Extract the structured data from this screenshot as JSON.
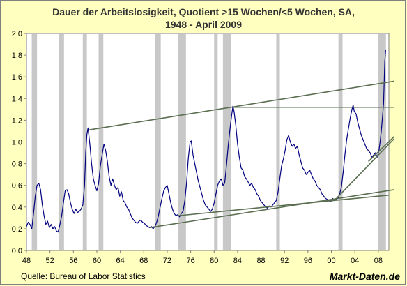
{
  "chart_data": {
    "type": "line",
    "title_line1": "Dauer der Arbeitslosigkeit, Quotient >15 Wochen/<5 Wochen, SA,",
    "title_line2": "1948 - April 2009",
    "source": "Quelle: Bureau of Labor Statistics",
    "watermark": "Markt-Daten.de",
    "xlim": [
      1948,
      2009.8
    ],
    "ylim": [
      0,
      2
    ],
    "x_ticks": [
      "48",
      "52",
      "56",
      "60",
      "64",
      "68",
      "72",
      "76",
      "80",
      "84",
      "88",
      "92",
      "96",
      "00",
      "04",
      "08"
    ],
    "x_tick_values": [
      1948,
      1952,
      1956,
      1960,
      1964,
      1968,
      1972,
      1976,
      1980,
      1984,
      1988,
      1992,
      1996,
      2000,
      2004,
      2008
    ],
    "y_ticks": [
      "0,0",
      "0,2",
      "0,4",
      "0,6",
      "0,8",
      "1,0",
      "1,2",
      "1,4",
      "1,6",
      "1,8",
      "2,0"
    ],
    "y_tick_values": [
      0,
      0.2,
      0.4,
      0.6,
      0.8,
      1.0,
      1.2,
      1.4,
      1.6,
      1.8,
      2.0
    ],
    "grid": false,
    "colors": {
      "series": "#000080",
      "recession": "#c8c8c8",
      "trendline": "#5a6e50",
      "plot_bg": "#ffffff",
      "page_bg": "#ffffc0"
    },
    "recessions": [
      [
        1948.9,
        1949.8
      ],
      [
        1953.5,
        1954.4
      ],
      [
        1957.6,
        1958.3
      ],
      [
        1960.3,
        1961.1
      ],
      [
        1969.9,
        1970.9
      ],
      [
        1973.9,
        1975.2
      ],
      [
        1980.0,
        1980.6
      ],
      [
        1981.5,
        1982.9
      ],
      [
        1990.6,
        1991.2
      ],
      [
        2001.2,
        2001.9
      ],
      [
        2007.9,
        2009.3
      ]
    ],
    "series": [
      {
        "values": [
          [
            1948.0,
            0.22
          ],
          [
            1948.3,
            0.26
          ],
          [
            1948.6,
            0.24
          ],
          [
            1948.9,
            0.2
          ],
          [
            1949.2,
            0.34
          ],
          [
            1949.5,
            0.5
          ],
          [
            1949.8,
            0.6
          ],
          [
            1950.1,
            0.62
          ],
          [
            1950.4,
            0.56
          ],
          [
            1950.7,
            0.42
          ],
          [
            1951.0,
            0.32
          ],
          [
            1951.3,
            0.24
          ],
          [
            1951.6,
            0.27
          ],
          [
            1951.9,
            0.21
          ],
          [
            1952.2,
            0.24
          ],
          [
            1952.5,
            0.2
          ],
          [
            1952.8,
            0.22
          ],
          [
            1953.1,
            0.18
          ],
          [
            1953.4,
            0.17
          ],
          [
            1953.7,
            0.24
          ],
          [
            1954.0,
            0.32
          ],
          [
            1954.3,
            0.44
          ],
          [
            1954.6,
            0.55
          ],
          [
            1954.9,
            0.56
          ],
          [
            1955.2,
            0.52
          ],
          [
            1955.5,
            0.44
          ],
          [
            1955.8,
            0.38
          ],
          [
            1956.1,
            0.34
          ],
          [
            1956.4,
            0.38
          ],
          [
            1956.7,
            0.35
          ],
          [
            1957.0,
            0.36
          ],
          [
            1957.3,
            0.38
          ],
          [
            1957.6,
            0.42
          ],
          [
            1957.9,
            0.6
          ],
          [
            1958.1,
            0.9
          ],
          [
            1958.3,
            1.07
          ],
          [
            1958.5,
            1.13
          ],
          [
            1958.8,
            0.98
          ],
          [
            1959.1,
            0.8
          ],
          [
            1959.4,
            0.66
          ],
          [
            1959.7,
            0.6
          ],
          [
            1960.0,
            0.55
          ],
          [
            1960.3,
            0.62
          ],
          [
            1960.6,
            0.78
          ],
          [
            1960.9,
            0.88
          ],
          [
            1961.2,
            0.98
          ],
          [
            1961.5,
            0.92
          ],
          [
            1961.8,
            0.82
          ],
          [
            1962.1,
            0.68
          ],
          [
            1962.4,
            0.6
          ],
          [
            1962.7,
            0.66
          ],
          [
            1963.0,
            0.6
          ],
          [
            1963.3,
            0.56
          ],
          [
            1963.6,
            0.58
          ],
          [
            1963.9,
            0.5
          ],
          [
            1964.2,
            0.54
          ],
          [
            1964.5,
            0.46
          ],
          [
            1964.8,
            0.44
          ],
          [
            1965.1,
            0.4
          ],
          [
            1965.4,
            0.38
          ],
          [
            1965.7,
            0.34
          ],
          [
            1966.0,
            0.3
          ],
          [
            1966.3,
            0.28
          ],
          [
            1966.6,
            0.26
          ],
          [
            1966.9,
            0.25
          ],
          [
            1967.2,
            0.27
          ],
          [
            1967.5,
            0.28
          ],
          [
            1967.8,
            0.26
          ],
          [
            1968.1,
            0.25
          ],
          [
            1968.4,
            0.23
          ],
          [
            1968.7,
            0.22
          ],
          [
            1969.0,
            0.21
          ],
          [
            1969.3,
            0.22
          ],
          [
            1969.6,
            0.2
          ],
          [
            1969.9,
            0.22
          ],
          [
            1970.2,
            0.26
          ],
          [
            1970.5,
            0.32
          ],
          [
            1970.8,
            0.4
          ],
          [
            1971.1,
            0.48
          ],
          [
            1971.4,
            0.55
          ],
          [
            1971.7,
            0.58
          ],
          [
            1972.0,
            0.6
          ],
          [
            1972.3,
            0.52
          ],
          [
            1972.6,
            0.44
          ],
          [
            1972.9,
            0.38
          ],
          [
            1973.2,
            0.34
          ],
          [
            1973.5,
            0.32
          ],
          [
            1973.8,
            0.33
          ],
          [
            1974.1,
            0.31
          ],
          [
            1974.4,
            0.34
          ],
          [
            1974.7,
            0.36
          ],
          [
            1975.0,
            0.46
          ],
          [
            1975.3,
            0.62
          ],
          [
            1975.6,
            0.85
          ],
          [
            1975.9,
            1.0
          ],
          [
            1976.1,
            1.01
          ],
          [
            1976.4,
            0.88
          ],
          [
            1976.7,
            0.8
          ],
          [
            1977.0,
            0.72
          ],
          [
            1977.3,
            0.64
          ],
          [
            1977.6,
            0.58
          ],
          [
            1977.9,
            0.52
          ],
          [
            1978.2,
            0.46
          ],
          [
            1978.5,
            0.42
          ],
          [
            1978.8,
            0.4
          ],
          [
            1979.1,
            0.38
          ],
          [
            1979.4,
            0.36
          ],
          [
            1979.7,
            0.38
          ],
          [
            1980.0,
            0.44
          ],
          [
            1980.3,
            0.52
          ],
          [
            1980.6,
            0.6
          ],
          [
            1980.9,
            0.64
          ],
          [
            1981.2,
            0.66
          ],
          [
            1981.5,
            0.6
          ],
          [
            1981.8,
            0.62
          ],
          [
            1982.1,
            0.78
          ],
          [
            1982.4,
            0.96
          ],
          [
            1982.7,
            1.12
          ],
          [
            1983.0,
            1.25
          ],
          [
            1983.2,
            1.33
          ],
          [
            1983.4,
            1.28
          ],
          [
            1983.7,
            1.15
          ],
          [
            1984.0,
            0.98
          ],
          [
            1984.3,
            0.86
          ],
          [
            1984.6,
            0.76
          ],
          [
            1984.9,
            0.74
          ],
          [
            1985.2,
            0.68
          ],
          [
            1985.5,
            0.66
          ],
          [
            1985.8,
            0.63
          ],
          [
            1986.1,
            0.6
          ],
          [
            1986.4,
            0.62
          ],
          [
            1986.7,
            0.58
          ],
          [
            1987.0,
            0.56
          ],
          [
            1987.3,
            0.52
          ],
          [
            1987.6,
            0.5
          ],
          [
            1987.9,
            0.46
          ],
          [
            1988.2,
            0.44
          ],
          [
            1988.5,
            0.42
          ],
          [
            1988.8,
            0.4
          ],
          [
            1989.1,
            0.39
          ],
          [
            1989.4,
            0.41
          ],
          [
            1989.7,
            0.4
          ],
          [
            1990.0,
            0.42
          ],
          [
            1990.3,
            0.44
          ],
          [
            1990.6,
            0.46
          ],
          [
            1990.9,
            0.54
          ],
          [
            1991.2,
            0.66
          ],
          [
            1991.5,
            0.78
          ],
          [
            1991.8,
            0.84
          ],
          [
            1992.1,
            0.92
          ],
          [
            1992.4,
            1.02
          ],
          [
            1992.7,
            1.06
          ],
          [
            1993.0,
            1.0
          ],
          [
            1993.3,
            0.96
          ],
          [
            1993.6,
            0.98
          ],
          [
            1993.9,
            0.94
          ],
          [
            1994.2,
            0.96
          ],
          [
            1994.5,
            0.88
          ],
          [
            1994.8,
            0.82
          ],
          [
            1995.1,
            0.76
          ],
          [
            1995.4,
            0.74
          ],
          [
            1995.7,
            0.7
          ],
          [
            1996.0,
            0.72
          ],
          [
            1996.3,
            0.74
          ],
          [
            1996.6,
            0.7
          ],
          [
            1996.9,
            0.66
          ],
          [
            1997.2,
            0.64
          ],
          [
            1997.5,
            0.6
          ],
          [
            1997.8,
            0.58
          ],
          [
            1998.1,
            0.56
          ],
          [
            1998.4,
            0.52
          ],
          [
            1998.7,
            0.5
          ],
          [
            1999.0,
            0.48
          ],
          [
            1999.3,
            0.47
          ],
          [
            1999.6,
            0.46
          ],
          [
            1999.9,
            0.45
          ],
          [
            2000.2,
            0.48
          ],
          [
            2000.5,
            0.46
          ],
          [
            2000.8,
            0.47
          ],
          [
            2001.1,
            0.48
          ],
          [
            2001.4,
            0.52
          ],
          [
            2001.7,
            0.58
          ],
          [
            2002.0,
            0.72
          ],
          [
            2002.3,
            0.88
          ],
          [
            2002.6,
            1.02
          ],
          [
            2002.9,
            1.12
          ],
          [
            2003.2,
            1.22
          ],
          [
            2003.5,
            1.3
          ],
          [
            2003.7,
            1.34
          ],
          [
            2003.9,
            1.28
          ],
          [
            2004.2,
            1.26
          ],
          [
            2004.5,
            1.18
          ],
          [
            2004.8,
            1.12
          ],
          [
            2005.1,
            1.06
          ],
          [
            2005.4,
            1.02
          ],
          [
            2005.7,
            0.98
          ],
          [
            2006.0,
            0.94
          ],
          [
            2006.3,
            0.92
          ],
          [
            2006.6,
            0.9
          ],
          [
            2006.9,
            0.86
          ],
          [
            2007.2,
            0.88
          ],
          [
            2007.5,
            0.9
          ],
          [
            2007.8,
            0.86
          ],
          [
            2008.1,
            0.92
          ],
          [
            2008.3,
            1.0
          ],
          [
            2008.5,
            1.1
          ],
          [
            2008.7,
            1.22
          ],
          [
            2008.9,
            1.36
          ],
          [
            2009.0,
            1.56
          ],
          [
            2009.1,
            1.74
          ],
          [
            2009.25,
            1.85
          ]
        ]
      }
    ],
    "trendlines": [
      [
        [
          1958.5,
          1.11
        ],
        [
          2010.7,
          1.56
        ]
      ],
      [
        [
          1983.2,
          1.32
        ],
        [
          2010.7,
          1.32
        ]
      ],
      [
        [
          1969.0,
          0.21
        ],
        [
          2010.7,
          0.56
        ]
      ],
      [
        [
          1973.8,
          0.32
        ],
        [
          2009.8,
          0.51
        ]
      ],
      [
        [
          2000.5,
          0.46
        ],
        [
          2010.7,
          1.03
        ]
      ],
      [
        [
          2006.3,
          0.82
        ],
        [
          2010.7,
          1.05
        ]
      ]
    ]
  }
}
